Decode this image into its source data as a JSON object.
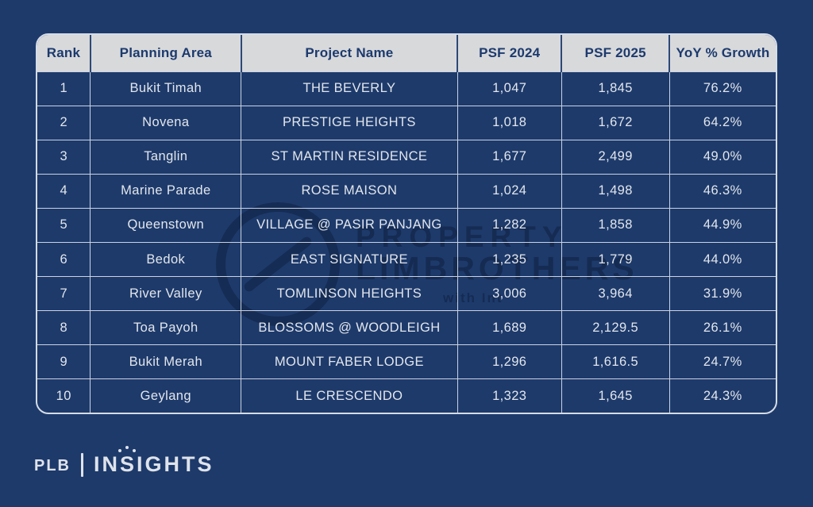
{
  "colors": {
    "background": "#1d3a6b",
    "header_bg": "#d8d9db",
    "header_text": "#1c3a6e",
    "cell_text": "#e3e6eb",
    "grid_line": "#ebeef4",
    "watermark": "#0d1c3a"
  },
  "chart_data": {
    "type": "table",
    "columns": [
      "Rank",
      "Planning Area",
      "Project Name",
      "PSF 2024",
      "PSF 2025",
      "YoY % Growth"
    ],
    "column_keys": [
      "rank",
      "planning-area",
      "project-name",
      "psf-2024",
      "psf-2025",
      "yoy-growth"
    ],
    "rows": [
      [
        "1",
        "Bukit Timah",
        "THE BEVERLY",
        "1,047",
        "1,845",
        "76.2%"
      ],
      [
        "2",
        "Novena",
        "PRESTIGE HEIGHTS",
        "1,018",
        "1,672",
        "64.2%"
      ],
      [
        "3",
        "Tanglin",
        "ST MARTIN RESIDENCE",
        "1,677",
        "2,499",
        "49.0%"
      ],
      [
        "4",
        "Marine Parade",
        "ROSE MAISON",
        "1,024",
        "1,498",
        "46.3%"
      ],
      [
        "5",
        "Queenstown",
        "VILLAGE @ PASIR PANJANG",
        "1,282",
        "1,858",
        "44.9%"
      ],
      [
        "6",
        "Bedok",
        "EAST SIGNATURE",
        "1,235",
        "1,779",
        "44.0%"
      ],
      [
        "7",
        "River Valley",
        "TOMLINSON HEIGHTS",
        "3,006",
        "3,964",
        "31.9%"
      ],
      [
        "8",
        "Toa Payoh",
        "BLOSSOMS @ WOODLEIGH",
        "1,689",
        "2,129.5",
        "26.1%"
      ],
      [
        "9",
        "Bukit Merah",
        "MOUNT FABER LODGE",
        "1,296",
        "1,616.5",
        "24.7%"
      ],
      [
        "10",
        "Geylang",
        "LE CRESCENDO",
        "1,323",
        "1,645",
        "24.3%"
      ]
    ]
  },
  "watermark": {
    "line1": "PROPERTY",
    "line2": "LIMBROTHERS",
    "line3": "with Int"
  },
  "brand": {
    "name": "PLB",
    "insights_pre": "IN",
    "insights_bulb": "S",
    "insights_post": "IGHTS"
  }
}
